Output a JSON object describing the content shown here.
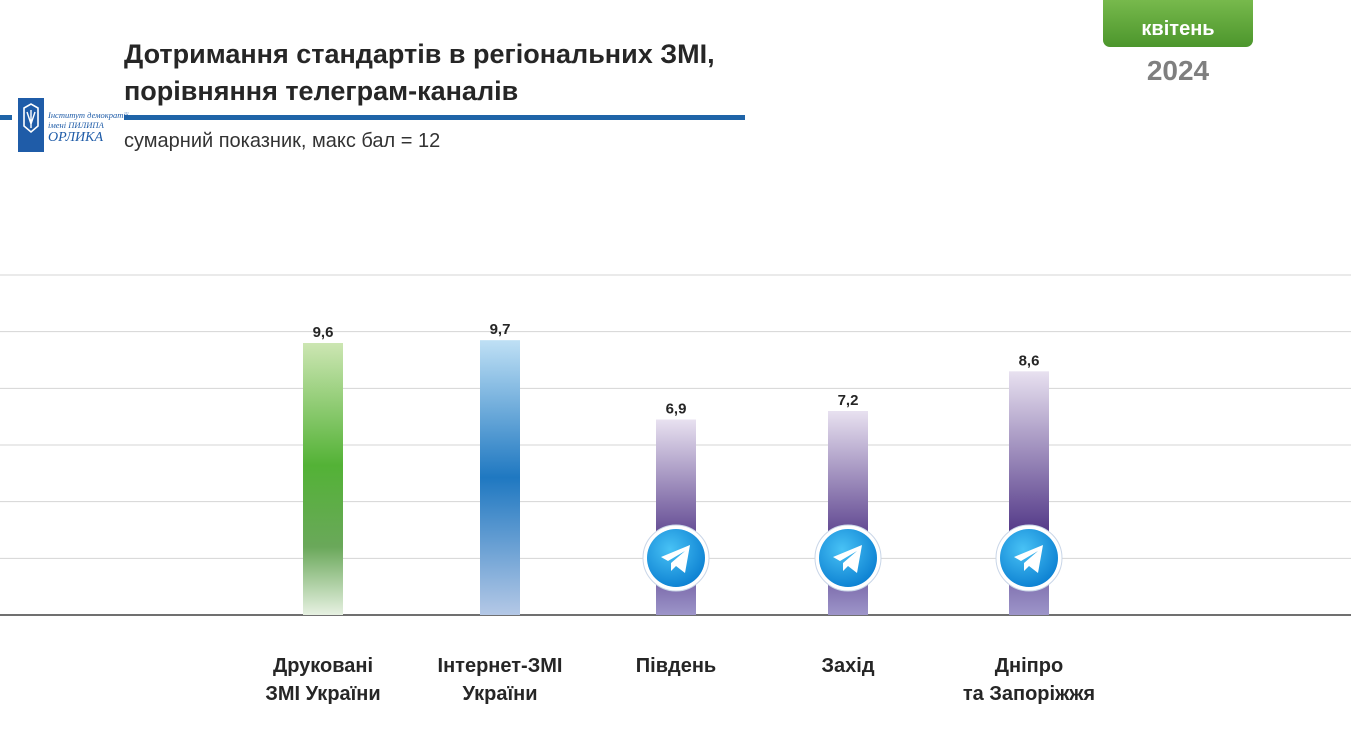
{
  "header": {
    "title": "Дотримання стандартів в регіональних ЗМІ,\nпорівняння телеграм-каналів",
    "subtitle": "сумарний показник, макс бал = 12"
  },
  "logo": {
    "line1": "Інститут демократії",
    "line2": "імені ПИЛИПА",
    "line3": "ОРЛИКА"
  },
  "badge": {
    "month": "квітень",
    "year": "2024"
  },
  "colors": {
    "title_rule": "#1f64a8",
    "green": "#53b236",
    "blue": "#1f78c1",
    "purple": "#563c8a",
    "telegram": "#229ed9"
  },
  "chart_data": {
    "type": "bar",
    "categories": [
      "Друковані\nЗМІ України",
      "Інтернет-ЗМІ\nУкраїни",
      "Південь",
      "Захід",
      "Дніпро\nта Запоріжжя"
    ],
    "values": [
      9.6,
      9.7,
      6.9,
      7.2,
      8.6
    ],
    "data_labels": [
      "9,6",
      "9,7",
      "6,9",
      "7,2",
      "8,6"
    ],
    "bar_styles": [
      "green",
      "blue",
      "purple",
      "purple",
      "purple"
    ],
    "telegram_icon": [
      false,
      false,
      true,
      true,
      true
    ],
    "ylim": [
      0,
      12
    ],
    "gridline_step": 2,
    "grid": true,
    "axis_labels_shown": false
  }
}
